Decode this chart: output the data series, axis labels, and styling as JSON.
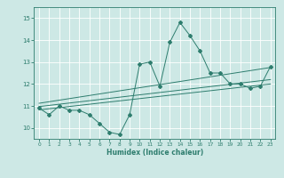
{
  "title": "",
  "xlabel": "Humidex (Indice chaleur)",
  "ylabel": "",
  "bg_color": "#cde8e5",
  "grid_color": "#ffffff",
  "line_color": "#2e7d6e",
  "xlim": [
    -0.5,
    23.5
  ],
  "ylim": [
    9.5,
    15.5
  ],
  "xticks": [
    0,
    1,
    2,
    3,
    4,
    5,
    6,
    7,
    8,
    9,
    10,
    11,
    12,
    13,
    14,
    15,
    16,
    17,
    18,
    19,
    20,
    21,
    22,
    23
  ],
  "yticks": [
    10,
    11,
    12,
    13,
    14,
    15
  ],
  "data_x": [
    0,
    1,
    2,
    3,
    4,
    5,
    6,
    7,
    8,
    9,
    10,
    11,
    12,
    13,
    14,
    15,
    16,
    17,
    18,
    19,
    20,
    21,
    22,
    23
  ],
  "data_y": [
    10.9,
    10.6,
    11.0,
    10.8,
    10.8,
    10.6,
    10.2,
    9.8,
    9.7,
    10.6,
    12.9,
    13.0,
    11.9,
    13.9,
    14.8,
    14.2,
    13.5,
    12.5,
    12.5,
    12.0,
    12.0,
    11.8,
    11.9,
    12.8
  ],
  "trend_lines": [
    {
      "x0": 0,
      "y0": 10.82,
      "x1": 23,
      "y1": 12.0
    },
    {
      "x0": 0,
      "y0": 10.97,
      "x1": 23,
      "y1": 12.2
    },
    {
      "x0": 0,
      "y0": 11.12,
      "x1": 23,
      "y1": 12.75
    }
  ]
}
